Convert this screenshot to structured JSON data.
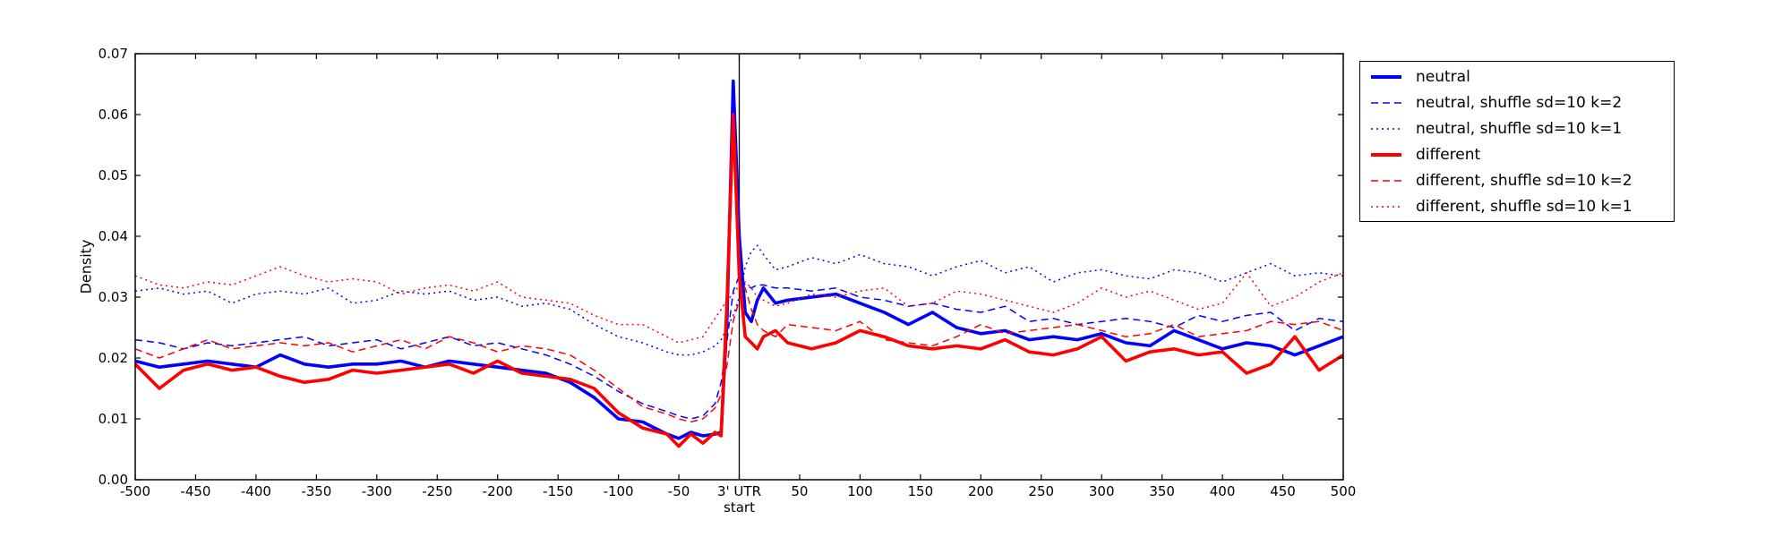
{
  "figure": {
    "background": "#ffffff"
  },
  "colors": {
    "blue": "#0000ff",
    "red": "#ff0000",
    "axis": "#000000"
  },
  "chart_data": {
    "type": "line",
    "title": "",
    "xlabel": "",
    "ylabel": "Density",
    "xlim": [
      -500,
      500
    ],
    "ylim": [
      0.0,
      0.07
    ],
    "grid": false,
    "legend_position": "outside-right",
    "vline_x": 0,
    "xticks": [
      {
        "v": -500,
        "lines": [
          "-500"
        ]
      },
      {
        "v": -450,
        "lines": [
          "-450"
        ]
      },
      {
        "v": -400,
        "lines": [
          "-400"
        ]
      },
      {
        "v": -350,
        "lines": [
          "-350"
        ]
      },
      {
        "v": -300,
        "lines": [
          "-300"
        ]
      },
      {
        "v": -250,
        "lines": [
          "-250"
        ]
      },
      {
        "v": -200,
        "lines": [
          "-200"
        ]
      },
      {
        "v": -150,
        "lines": [
          "-150"
        ]
      },
      {
        "v": -100,
        "lines": [
          "-100"
        ]
      },
      {
        "v": -50,
        "lines": [
          "-50"
        ]
      },
      {
        "v": 0,
        "lines": [
          "3' UTR",
          "start"
        ]
      },
      {
        "v": 50,
        "lines": [
          "50"
        ]
      },
      {
        "v": 100,
        "lines": [
          "100"
        ]
      },
      {
        "v": 150,
        "lines": [
          "150"
        ]
      },
      {
        "v": 200,
        "lines": [
          "200"
        ]
      },
      {
        "v": 250,
        "lines": [
          "250"
        ]
      },
      {
        "v": 300,
        "lines": [
          "300"
        ]
      },
      {
        "v": 350,
        "lines": [
          "350"
        ]
      },
      {
        "v": 400,
        "lines": [
          "400"
        ]
      },
      {
        "v": 450,
        "lines": [
          "450"
        ]
      },
      {
        "v": 500,
        "lines": [
          "500"
        ]
      }
    ],
    "yticks": [
      {
        "v": 0.0,
        "label": "0.00"
      },
      {
        "v": 0.01,
        "label": "0.01"
      },
      {
        "v": 0.02,
        "label": "0.02"
      },
      {
        "v": 0.03,
        "label": "0.03"
      },
      {
        "v": 0.04,
        "label": "0.04"
      },
      {
        "v": 0.05,
        "label": "0.05"
      },
      {
        "v": 0.06,
        "label": "0.06"
      },
      {
        "v": 0.07,
        "label": "0.07"
      }
    ],
    "x": [
      -500,
      -480,
      -460,
      -440,
      -420,
      -400,
      -380,
      -360,
      -340,
      -320,
      -300,
      -280,
      -260,
      -240,
      -220,
      -200,
      -180,
      -160,
      -140,
      -120,
      -100,
      -80,
      -60,
      -50,
      -40,
      -30,
      -20,
      -15,
      -10,
      -5,
      0,
      5,
      10,
      15,
      20,
      30,
      40,
      60,
      80,
      100,
      120,
      140,
      160,
      180,
      200,
      220,
      240,
      260,
      280,
      300,
      320,
      340,
      360,
      380,
      400,
      420,
      440,
      460,
      480,
      500
    ],
    "series": [
      {
        "name": "neutral",
        "slug": "neutral",
        "color": "#0000ff",
        "style": "solid",
        "width": 3.6,
        "values": [
          0.0195,
          0.0185,
          0.019,
          0.0195,
          0.019,
          0.0185,
          0.0205,
          0.019,
          0.0185,
          0.019,
          0.019,
          0.0195,
          0.0185,
          0.0195,
          0.019,
          0.0185,
          0.018,
          0.0175,
          0.016,
          0.0135,
          0.01,
          0.0095,
          0.0075,
          0.0068,
          0.0078,
          0.0072,
          0.0075,
          0.0078,
          0.027,
          0.0655,
          0.04,
          0.0275,
          0.026,
          0.0295,
          0.0315,
          0.029,
          0.0295,
          0.03,
          0.0305,
          0.029,
          0.0275,
          0.0255,
          0.0275,
          0.025,
          0.024,
          0.0245,
          0.023,
          0.0235,
          0.023,
          0.024,
          0.0225,
          0.022,
          0.0245,
          0.023,
          0.0215,
          0.0225,
          0.022,
          0.0205,
          0.022,
          0.0235
        ]
      },
      {
        "name": "neutral, shuffle sd=10 k=2",
        "slug": "neutral-shuffle-sd10-k2",
        "color": "#0000ff",
        "style": "dashed",
        "width": 1.5,
        "values": [
          0.023,
          0.0225,
          0.0215,
          0.0225,
          0.022,
          0.0225,
          0.023,
          0.0235,
          0.022,
          0.0225,
          0.023,
          0.0215,
          0.0225,
          0.0235,
          0.022,
          0.0225,
          0.0215,
          0.0205,
          0.019,
          0.017,
          0.0145,
          0.0125,
          0.0112,
          0.0105,
          0.01,
          0.0105,
          0.0125,
          0.016,
          0.023,
          0.031,
          0.0335,
          0.032,
          0.0315,
          0.032,
          0.032,
          0.0315,
          0.0315,
          0.031,
          0.0315,
          0.03,
          0.0295,
          0.0285,
          0.029,
          0.028,
          0.0275,
          0.0285,
          0.026,
          0.0265,
          0.0255,
          0.026,
          0.0265,
          0.026,
          0.025,
          0.027,
          0.026,
          0.027,
          0.0275,
          0.0245,
          0.0265,
          0.026
        ]
      },
      {
        "name": "neutral, shuffle sd=10 k=1",
        "slug": "neutral-shuffle-sd10-k1",
        "color": "#0000ff",
        "style": "dotted",
        "width": 1.5,
        "values": [
          0.031,
          0.0315,
          0.0305,
          0.031,
          0.029,
          0.0305,
          0.031,
          0.0305,
          0.0315,
          0.029,
          0.0295,
          0.031,
          0.0305,
          0.031,
          0.0295,
          0.03,
          0.0285,
          0.029,
          0.028,
          0.0255,
          0.0235,
          0.0225,
          0.021,
          0.0205,
          0.0205,
          0.021,
          0.022,
          0.023,
          0.025,
          0.027,
          0.03,
          0.035,
          0.0375,
          0.0385,
          0.037,
          0.0345,
          0.035,
          0.0365,
          0.0355,
          0.037,
          0.0355,
          0.035,
          0.0335,
          0.035,
          0.036,
          0.034,
          0.035,
          0.0325,
          0.034,
          0.0345,
          0.0335,
          0.033,
          0.0345,
          0.034,
          0.0325,
          0.034,
          0.0355,
          0.0335,
          0.034,
          0.0335
        ]
      },
      {
        "name": "different",
        "slug": "different",
        "color": "#ff0000",
        "style": "solid",
        "width": 3.6,
        "values": [
          0.019,
          0.015,
          0.018,
          0.019,
          0.018,
          0.0185,
          0.017,
          0.016,
          0.0165,
          0.018,
          0.0175,
          0.018,
          0.0185,
          0.019,
          0.0175,
          0.0195,
          0.0175,
          0.017,
          0.0165,
          0.015,
          0.011,
          0.0085,
          0.0075,
          0.0055,
          0.0075,
          0.006,
          0.0078,
          0.0072,
          0.03,
          0.06,
          0.0335,
          0.0235,
          0.0225,
          0.0215,
          0.0235,
          0.0245,
          0.0225,
          0.0215,
          0.0225,
          0.0245,
          0.0235,
          0.022,
          0.0215,
          0.022,
          0.0215,
          0.023,
          0.021,
          0.0205,
          0.0215,
          0.0235,
          0.0195,
          0.021,
          0.0215,
          0.0205,
          0.021,
          0.0175,
          0.019,
          0.0235,
          0.018,
          0.0205
        ]
      },
      {
        "name": "different, shuffle sd=10 k=2",
        "slug": "different-shuffle-sd10-k2",
        "color": "#ff0000",
        "style": "dashed",
        "width": 1.5,
        "values": [
          0.0215,
          0.02,
          0.0215,
          0.023,
          0.0215,
          0.022,
          0.0225,
          0.022,
          0.0225,
          0.021,
          0.022,
          0.023,
          0.0215,
          0.0235,
          0.0225,
          0.021,
          0.022,
          0.0215,
          0.0205,
          0.018,
          0.015,
          0.012,
          0.0108,
          0.01,
          0.0095,
          0.01,
          0.0118,
          0.014,
          0.019,
          0.026,
          0.0295,
          0.0315,
          0.028,
          0.0255,
          0.0245,
          0.0235,
          0.0255,
          0.025,
          0.0245,
          0.026,
          0.023,
          0.0225,
          0.022,
          0.0235,
          0.0255,
          0.024,
          0.0245,
          0.025,
          0.0255,
          0.0245,
          0.0235,
          0.024,
          0.0255,
          0.0235,
          0.024,
          0.0245,
          0.026,
          0.0255,
          0.026,
          0.0245
        ]
      },
      {
        "name": "different, shuffle sd=10 k=1",
        "slug": "different-shuffle-sd10-k1",
        "color": "#ff0000",
        "style": "dotted",
        "width": 1.5,
        "values": [
          0.0335,
          0.032,
          0.0315,
          0.0325,
          0.032,
          0.0335,
          0.035,
          0.0335,
          0.0325,
          0.033,
          0.0325,
          0.0305,
          0.0315,
          0.032,
          0.031,
          0.0325,
          0.03,
          0.0295,
          0.029,
          0.027,
          0.0255,
          0.0255,
          0.0235,
          0.0225,
          0.023,
          0.0235,
          0.0265,
          0.028,
          0.0295,
          0.0305,
          0.032,
          0.0325,
          0.0315,
          0.03,
          0.0295,
          0.0285,
          0.029,
          0.0305,
          0.03,
          0.031,
          0.0315,
          0.0285,
          0.029,
          0.031,
          0.0305,
          0.0295,
          0.0285,
          0.0275,
          0.029,
          0.0315,
          0.03,
          0.031,
          0.0295,
          0.028,
          0.029,
          0.034,
          0.0285,
          0.03,
          0.0325,
          0.034
        ]
      }
    ]
  }
}
